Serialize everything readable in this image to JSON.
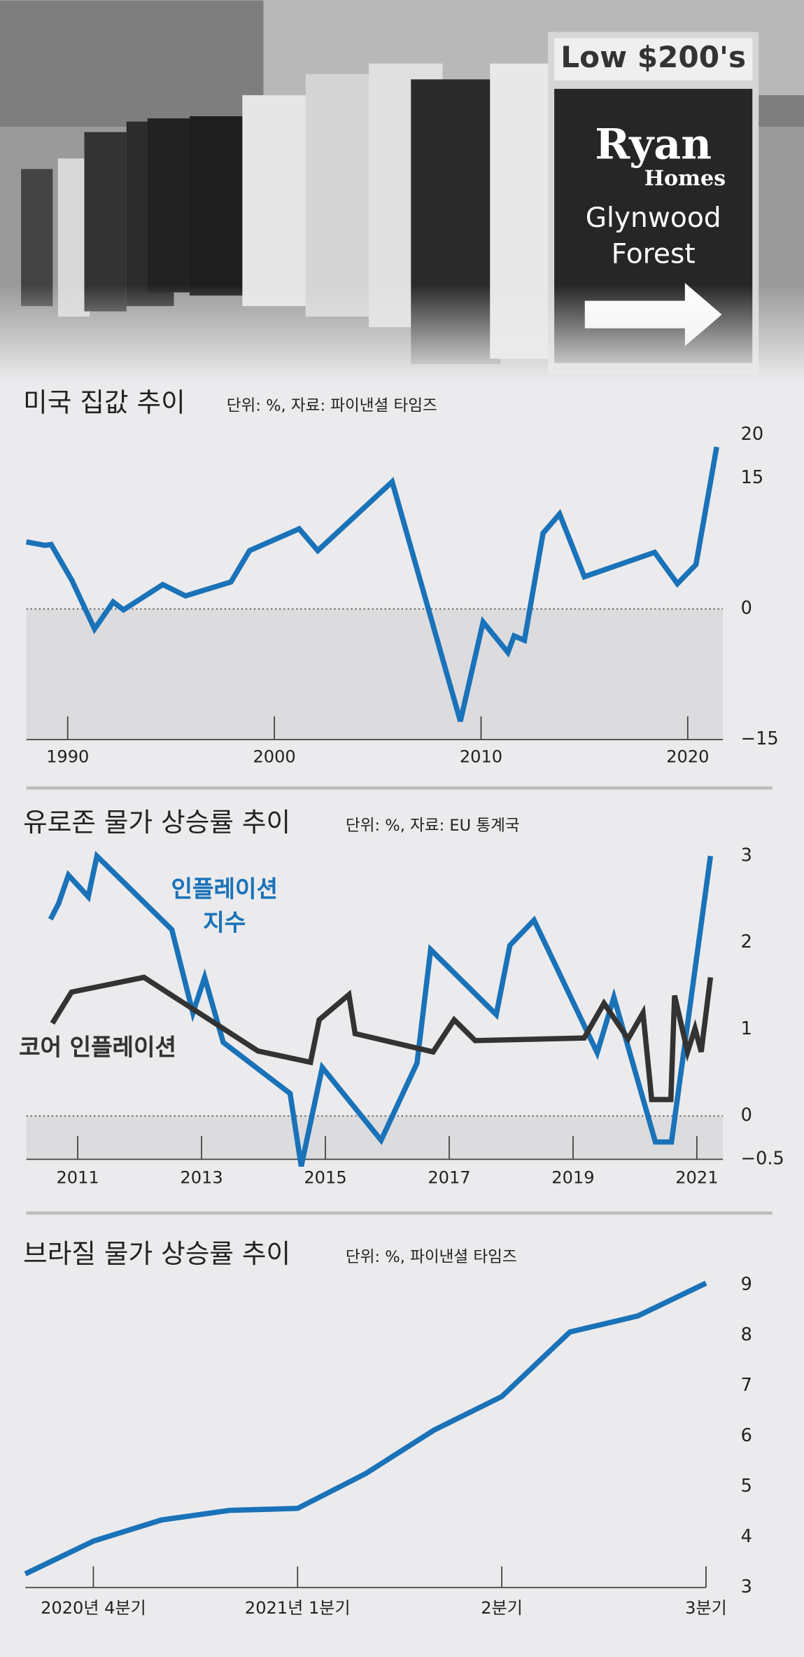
{
  "photo": {
    "signs": [
      "Low $200's",
      "Ryan",
      "Homes",
      "Glynwood",
      "Forest"
    ]
  },
  "chart_data": [
    {
      "type": "line",
      "title": "미국 집값 추이",
      "subtitle": "단위: %, 자료: 파이낸셜 타임즈",
      "x": [
        1988.0,
        1988.9,
        1989.2,
        1990.2,
        1991.3,
        1992.2,
        1992.7,
        1994.6,
        1995.7,
        1997.9,
        1998.8,
        2001.2,
        2002.1,
        2005.7,
        2009.0,
        2010.1,
        2011.3,
        2011.6,
        2012.1,
        2013.0,
        2013.8,
        2015.0,
        2018.4,
        2019.5,
        2020.4,
        2021.4
      ],
      "series": [
        {
          "name": null,
          "color": "#1a72b8",
          "values": [
            7.7,
            7.3,
            7.4,
            3.3,
            -2.3,
            0.8,
            -0.1,
            2.8,
            1.5,
            3.1,
            6.7,
            9.2,
            6.7,
            14.6,
            -12.9,
            -1.5,
            -5.0,
            -3.1,
            -3.6,
            8.7,
            10.9,
            3.7,
            6.5,
            2.9,
            5.1,
            18.6
          ]
        }
      ],
      "xlim": [
        1988,
        2021.7
      ],
      "xticks": [
        1990,
        2000,
        2010,
        2020
      ],
      "ylim": [
        -15,
        20
      ],
      "yticks": [
        {
          "value": -15,
          "label": "−15"
        },
        0,
        15,
        20
      ],
      "grid": false
    },
    {
      "type": "line",
      "title": "유로존 물가 상승률 추이",
      "subtitle": "단위: %, 자료: EU 통계국",
      "series": [
        {
          "name": "인플레이션 지수",
          "color": "#1a72b8",
          "x": [
            2010.56,
            2010.69,
            2010.85,
            2011.17,
            2011.31,
            2012.52,
            2012.86,
            2013.05,
            2013.35,
            2014.43,
            2014.61,
            2014.95,
            2015.9,
            2016.48,
            2016.7,
            2017.76,
            2017.98,
            2018.37,
            2019.39,
            2019.66,
            2020.33,
            2020.59,
            2021.22
          ],
          "values": [
            2.27,
            2.45,
            2.78,
            2.53,
            3.0,
            2.15,
            1.19,
            1.6,
            0.85,
            0.26,
            -0.58,
            0.56,
            -0.28,
            0.61,
            1.92,
            1.17,
            1.97,
            2.26,
            0.73,
            1.37,
            -0.3,
            -0.3,
            3.0
          ]
        },
        {
          "name": "코어 인플레이션",
          "color": "#333333",
          "x": [
            2010.59,
            2010.9,
            2012.07,
            2013.91,
            2014.76,
            2014.9,
            2015.38,
            2015.48,
            2016.74,
            2017.08,
            2017.42,
            2019.18,
            2019.5,
            2019.89,
            2020.13,
            2020.27,
            2020.58,
            2020.64,
            2020.85,
            2020.97,
            2021.07,
            2021.22
          ],
          "values": [
            1.07,
            1.43,
            1.6,
            0.75,
            0.62,
            1.11,
            1.4,
            0.95,
            0.74,
            1.11,
            0.87,
            0.9,
            1.3,
            0.89,
            1.19,
            0.19,
            0.19,
            1.39,
            0.74,
            1.01,
            0.74,
            1.6
          ]
        }
      ],
      "xlim": [
        2010.17,
        2021.42
      ],
      "xticks": [
        2011,
        2013,
        2015,
        2017,
        2019,
        2021
      ],
      "ylim": [
        -0.5,
        3.2
      ],
      "yticks": [
        {
          "value": -0.5,
          "label": "−0.5"
        },
        0,
        1,
        2,
        3
      ],
      "grid": false
    },
    {
      "type": "line",
      "title": "브라질 물가 상승률 추이",
      "subtitle": "단위: %, 파이낸셜 타임즈",
      "categories": [
        null,
        "2020년 4분기",
        null,
        null,
        "2021년 1분기",
        null,
        null,
        "2분기",
        null,
        null,
        "3분기"
      ],
      "series": [
        {
          "name": null,
          "color": "#1a72b8",
          "values": [
            3.27,
            3.92,
            4.34,
            4.53,
            4.57,
            5.26,
            6.12,
            6.79,
            8.07,
            8.39,
            9.04
          ]
        }
      ],
      "ylim": [
        3,
        9.3
      ],
      "yticks": [
        3,
        4,
        5,
        6,
        7,
        8,
        9
      ],
      "grid": false
    }
  ]
}
